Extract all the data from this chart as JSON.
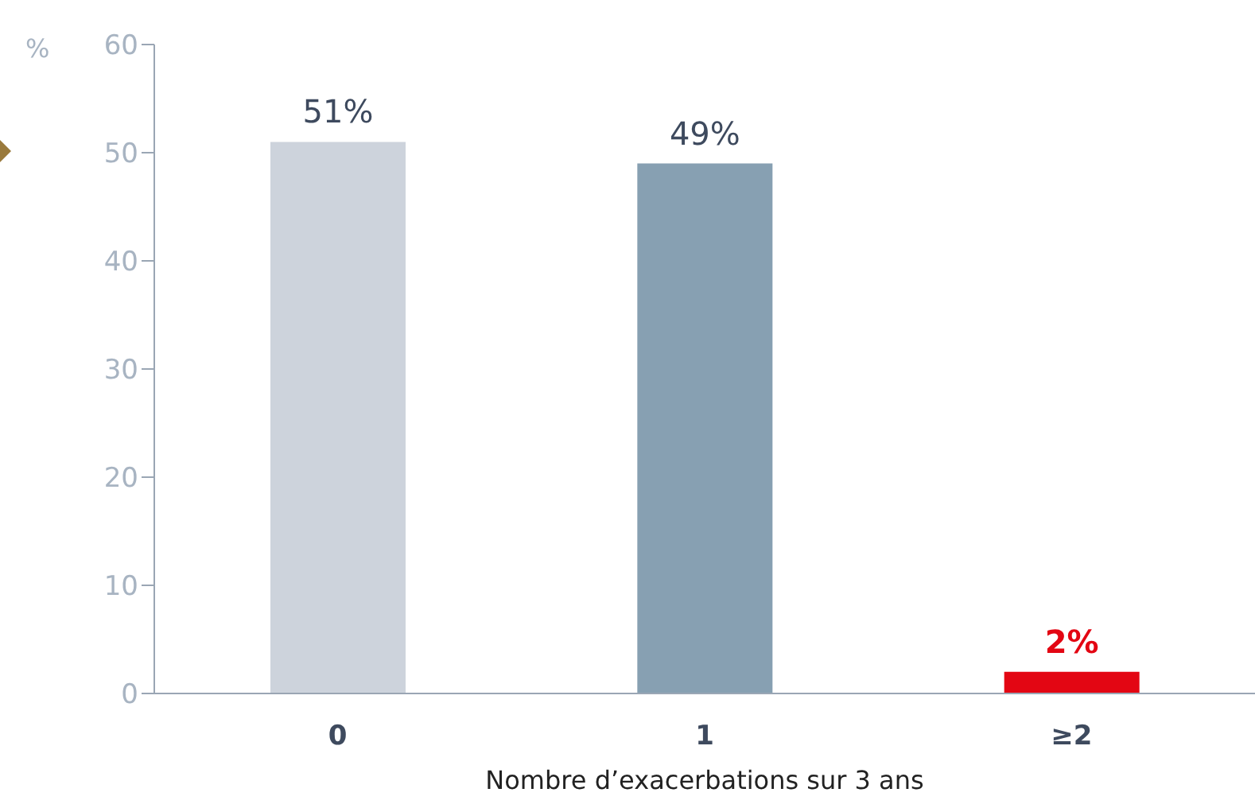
{
  "chart_data": {
    "type": "bar",
    "xlabel": "Nombre d’exacerbations sur 3 ans",
    "ylabel": "%",
    "categories": [
      "0",
      "1",
      "≥2"
    ],
    "values": [
      51,
      49,
      2
    ],
    "colors": [
      "#cdd3dc",
      "#87a0b2",
      "#e30613"
    ],
    "value_labels": [
      "51%",
      "49%",
      "2%"
    ],
    "ylim": [
      0,
      60
    ],
    "yticks": [
      0,
      10,
      20,
      30,
      40,
      50,
      60
    ],
    "grid": false
  }
}
